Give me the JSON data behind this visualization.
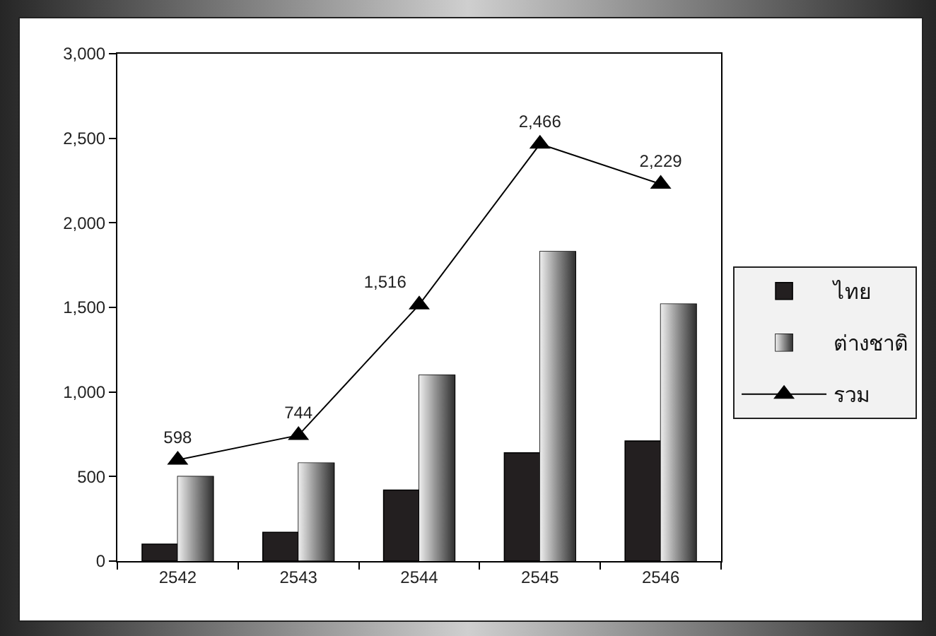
{
  "chart_data": {
    "type": "bar",
    "categories": [
      "2542",
      "2543",
      "2544",
      "2545",
      "2546"
    ],
    "series": [
      {
        "name": "ไทย",
        "color": "#231f20",
        "values": [
          100,
          170,
          420,
          640,
          710
        ]
      },
      {
        "name": "ต่างชาติ",
        "color": "#8c8c8c",
        "values": [
          500,
          580,
          1100,
          1830,
          1520
        ]
      },
      {
        "name": "รวม",
        "type": "line",
        "color": "#000000",
        "values": [
          598,
          744,
          1516,
          2466,
          2229
        ],
        "value_labels": [
          "598",
          "744",
          "1,516",
          "2,466",
          "2,229"
        ]
      }
    ],
    "ylim": [
      0,
      3000
    ],
    "yticks": [
      0,
      500,
      {
        "value": 1000,
        "label": "1,000"
      },
      {
        "value": 1500,
        "label": "1,500"
      },
      {
        "value": 2000,
        "label": "2,000"
      },
      {
        "value": 2500,
        "label": "2,500"
      },
      {
        "value": 3000,
        "label": "3,000"
      }
    ],
    "legend": "right",
    "marker": "triangle",
    "line_style": "solid"
  }
}
